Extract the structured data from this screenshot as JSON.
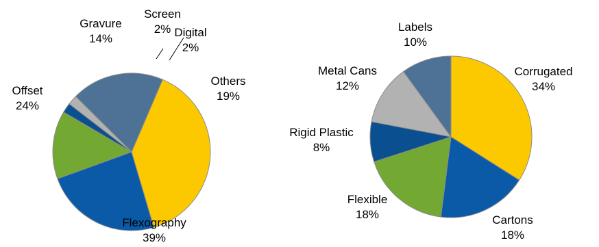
{
  "chart_data": [
    {
      "type": "pie",
      "title": "",
      "slices": [
        {
          "label": "Gravure",
          "value": 14,
          "display": "14%",
          "color": "#73a832"
        },
        {
          "label": "Offset",
          "value": 24,
          "display": "24%",
          "color": "#0b5aa8"
        },
        {
          "label": "Flexography",
          "value": 39,
          "display": "39%",
          "color": "#fcc800"
        },
        {
          "label": "Others",
          "value": 19,
          "display": "19%",
          "color": "#4d7296"
        },
        {
          "label": "Digital",
          "value": 2,
          "display": "2%",
          "color": "#b2b2b2"
        },
        {
          "label": "Screen",
          "value": 2,
          "display": "2%",
          "color": "#0a4f8f"
        }
      ]
    },
    {
      "type": "pie",
      "title": "",
      "slices": [
        {
          "label": "Corrugated",
          "value": 34,
          "display": "34%",
          "color": "#fcc800"
        },
        {
          "label": "Cartons",
          "value": 18,
          "display": "18%",
          "color": "#0b5aa8"
        },
        {
          "label": "Flexible",
          "value": 18,
          "display": "18%",
          "color": "#73a832"
        },
        {
          "label": "Rigid Plastic",
          "value": 8,
          "display": "8%",
          "color": "#0a4f8f"
        },
        {
          "label": "Metal Cans",
          "value": 12,
          "display": "12%",
          "color": "#b2b2b2"
        },
        {
          "label": "Labels",
          "value": 10,
          "display": "10%",
          "color": "#4d7296"
        }
      ]
    }
  ]
}
